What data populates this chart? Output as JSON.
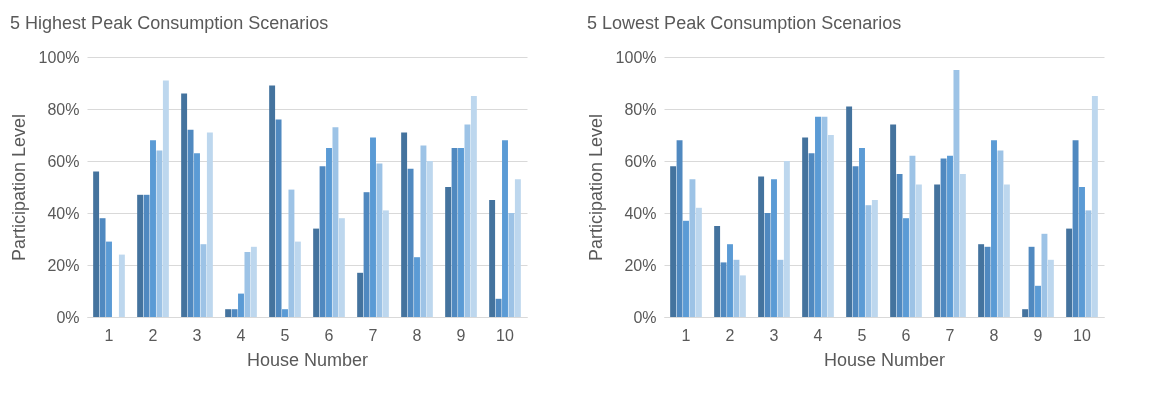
{
  "chart_data": [
    {
      "type": "bar",
      "title": "5 Highest Peak Consumption Scenarios",
      "xlabel": "House Number",
      "ylabel": "Participation Level",
      "categories": [
        "1",
        "2",
        "3",
        "4",
        "5",
        "6",
        "7",
        "8",
        "9",
        "10"
      ],
      "series": [
        {
          "color": "#44739e",
          "values": [
            56,
            47,
            86,
            3,
            89,
            34,
            17,
            71,
            50,
            45
          ]
        },
        {
          "color": "#5089c0",
          "values": [
            38,
            47,
            72,
            3,
            76,
            58,
            48,
            57,
            65,
            7
          ]
        },
        {
          "color": "#5b9bd5",
          "values": [
            29,
            68,
            63,
            9,
            3,
            65,
            69,
            23,
            65,
            68
          ]
        },
        {
          "color": "#9dc3e6",
          "values": [
            0,
            64,
            28,
            25,
            49,
            73,
            59,
            66,
            74,
            40
          ]
        },
        {
          "color": "#bdd7ee",
          "values": [
            24,
            91,
            71,
            27,
            29,
            38,
            41,
            60,
            85,
            53
          ]
        }
      ],
      "ylim": [
        0,
        100
      ],
      "yticks": [
        {
          "value": 0,
          "label": "0%"
        },
        {
          "value": 20,
          "label": "20%"
        },
        {
          "value": 40,
          "label": "40%"
        },
        {
          "value": 60,
          "label": "60%"
        },
        {
          "value": 80,
          "label": "80%"
        },
        {
          "value": 100,
          "label": "100%"
        }
      ],
      "grid": "y",
      "legend": false
    },
    {
      "type": "bar",
      "title": "5 Lowest Peak Consumption Scenarios",
      "xlabel": "House Number",
      "ylabel": "Participation Level",
      "categories": [
        "1",
        "2",
        "3",
        "4",
        "5",
        "6",
        "7",
        "8",
        "9",
        "10"
      ],
      "series": [
        {
          "color": "#44739e",
          "values": [
            58,
            35,
            54,
            69,
            81,
            74,
            51,
            28,
            3,
            34
          ]
        },
        {
          "color": "#5089c0",
          "values": [
            68,
            21,
            40,
            63,
            58,
            55,
            61,
            27,
            27,
            68
          ]
        },
        {
          "color": "#5b9bd5",
          "values": [
            37,
            28,
            53,
            77,
            65,
            38,
            62,
            68,
            12,
            50
          ]
        },
        {
          "color": "#9dc3e6",
          "values": [
            53,
            22,
            22,
            77,
            43,
            62,
            95,
            64,
            32,
            41
          ]
        },
        {
          "color": "#bdd7ee",
          "values": [
            42,
            16,
            60,
            70,
            45,
            51,
            55,
            51,
            22,
            85
          ]
        }
      ],
      "ylim": [
        0,
        100
      ],
      "yticks": [
        {
          "value": 0,
          "label": "0%"
        },
        {
          "value": 20,
          "label": "20%"
        },
        {
          "value": 40,
          "label": "40%"
        },
        {
          "value": 60,
          "label": "60%"
        },
        {
          "value": 80,
          "label": "80%"
        },
        {
          "value": 100,
          "label": "100%"
        }
      ],
      "grid": "y",
      "legend": false
    }
  ]
}
